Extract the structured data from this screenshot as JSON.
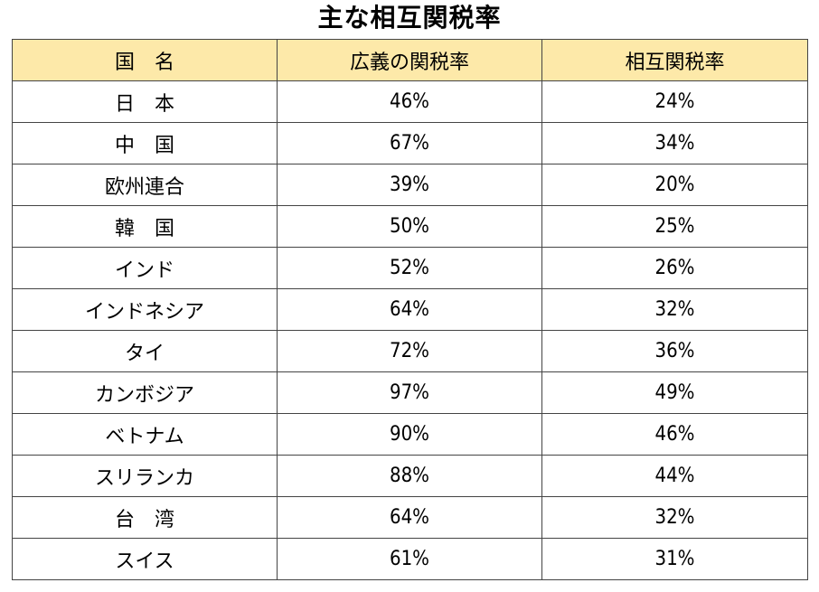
{
  "title": "主な相互関税率",
  "table": {
    "headers": [
      "国　名",
      "広義の関税率",
      "相互関税率"
    ],
    "rows": [
      {
        "country": "日　本",
        "broad": "46%",
        "reciprocal": "24%"
      },
      {
        "country": "中　国",
        "broad": "67%",
        "reciprocal": "34%"
      },
      {
        "country": "欧州連合",
        "broad": "39%",
        "reciprocal": "20%"
      },
      {
        "country": "韓　国",
        "broad": "50%",
        "reciprocal": "25%"
      },
      {
        "country": "インド",
        "broad": "52%",
        "reciprocal": "26%"
      },
      {
        "country": "インドネシア",
        "broad": "64%",
        "reciprocal": "32%"
      },
      {
        "country": "タイ",
        "broad": "72%",
        "reciprocal": "36%"
      },
      {
        "country": "カンボジア",
        "broad": "97%",
        "reciprocal": "49%"
      },
      {
        "country": "ベトナム",
        "broad": "90%",
        "reciprocal": "46%"
      },
      {
        "country": "スリランカ",
        "broad": "88%",
        "reciprocal": "44%"
      },
      {
        "country": "台　湾",
        "broad": "64%",
        "reciprocal": "32%"
      },
      {
        "country": "スイス",
        "broad": "61%",
        "reciprocal": "31%"
      }
    ]
  }
}
